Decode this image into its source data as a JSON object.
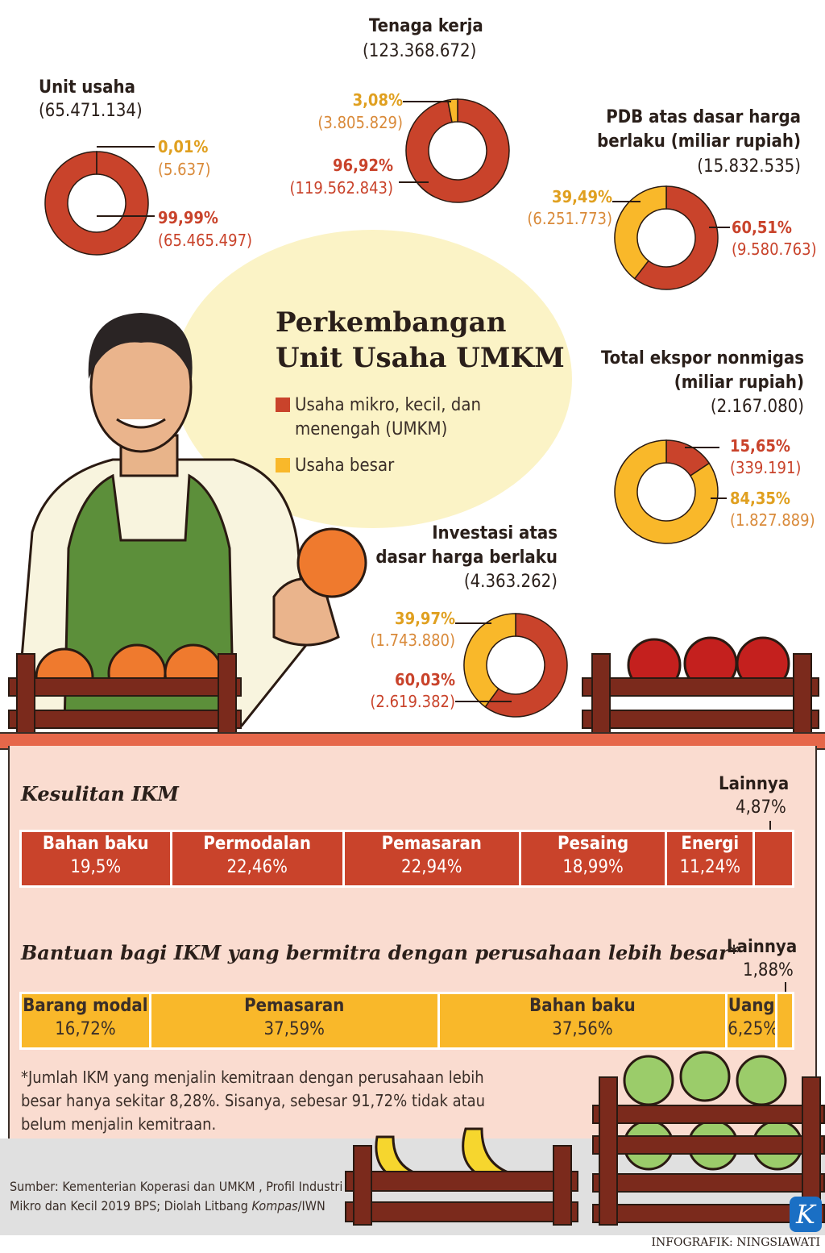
{
  "title": [
    "Perkembangan",
    "Unit Usaha UMKM"
  ],
  "legend": [
    {
      "label": "Usaha mikro, kecil, dan menengah (UMKM)",
      "color": "#c9432b"
    },
    {
      "label": "Usaha besar",
      "color": "#f9b82a"
    }
  ],
  "colors": {
    "umkm": "#c9432b",
    "besar": "#f9b82a"
  },
  "chart_data": [
    {
      "type": "pie",
      "donut": true,
      "title": "Unit usaha",
      "total": "(65.471.134)",
      "series": [
        {
          "name": "UMKM",
          "pct": "99,99%",
          "value": "(65.465.497)",
          "v": 99.99
        },
        {
          "name": "Usaha besar",
          "pct": "0,01%",
          "value": "(5.637)",
          "v": 0.01
        }
      ]
    },
    {
      "type": "pie",
      "donut": true,
      "title": "Tenaga kerja",
      "total": "(123.368.672)",
      "series": [
        {
          "name": "UMKM",
          "pct": "96,92%",
          "value": "(119.562.843)",
          "v": 96.92
        },
        {
          "name": "Usaha besar",
          "pct": "3,08%",
          "value": "(3.805.829)",
          "v": 3.08
        }
      ]
    },
    {
      "type": "pie",
      "donut": true,
      "title": "PDB atas dasar harga berlaku (miliar rupiah)",
      "total": "(15.832.535)",
      "series": [
        {
          "name": "UMKM",
          "pct": "60,51%",
          "value": "(9.580.763)",
          "v": 60.51
        },
        {
          "name": "Usaha besar",
          "pct": "39,49%",
          "value": "(6.251.773)",
          "v": 39.49
        }
      ]
    },
    {
      "type": "pie",
      "donut": true,
      "title": "Total ekspor nonmigas (miliar rupiah)",
      "total": "(2.167.080)",
      "series": [
        {
          "name": "UMKM",
          "pct": "15,65%",
          "value": "(339.191)",
          "v": 15.65
        },
        {
          "name": "Usaha besar",
          "pct": "84,35%",
          "value": "(1.827.889)",
          "v": 84.35
        }
      ]
    },
    {
      "type": "pie",
      "donut": true,
      "title": "Investasi atas dasar harga berlaku",
      "total": "(4.363.262)",
      "series": [
        {
          "name": "UMKM",
          "pct": "60,03%",
          "value": "(2.619.382)",
          "v": 60.03
        },
        {
          "name": "Usaha besar",
          "pct": "39,97%",
          "value": "(1.743.880)",
          "v": 39.97
        }
      ]
    },
    {
      "type": "bar",
      "stacked": true,
      "title": "Kesulitan IKM",
      "categories": [
        "Bahan baku",
        "Permodalan",
        "Pemasaran",
        "Pesaing",
        "Energi",
        "Lainnya"
      ],
      "labels": [
        "19,5%",
        "22,46%",
        "22,94%",
        "18,99%",
        "11,24%",
        "4,87%"
      ],
      "values": [
        19.5,
        22.46,
        22.94,
        18.99,
        11.24,
        4.87
      ]
    },
    {
      "type": "bar",
      "stacked": true,
      "title": "Bantuan bagi IKM yang bermitra dengan perusahaan lebih besar*",
      "categories": [
        "Barang modal",
        "Pemasaran",
        "Bahan baku",
        "Uang",
        "Lainnya"
      ],
      "labels": [
        "16,72%",
        "37,59%",
        "37,56%",
        "6,25%",
        "1,88%"
      ],
      "values": [
        16.72,
        37.59,
        37.56,
        6.25,
        1.88
      ]
    }
  ],
  "titles": {
    "unit": "Unit usaha",
    "tenaga": "Tenaga kerja",
    "pdb": [
      "PDB atas dasar harga",
      "berlaku (miliar rupiah)"
    ],
    "ekspor": [
      "Total ekspor nonmigas",
      "(miliar rupiah)"
    ],
    "investasi": [
      "Investasi atas",
      "dasar harga berlaku"
    ]
  },
  "footnote": "*Jumlah IKM yang menjalin kemitraan dengan perusahaan lebih besar hanya sekitar 8,28%. Sisanya, sebesar 91,72% tidak atau belum menjalin kemitraan.",
  "source": [
    "Sumber: Kementerian Koperasi dan UMKM , Profil Industri",
    "Mikro dan Kecil 2019 BPS; Diolah Litbang ",
    "Kompas",
    "/IWN"
  ],
  "credit": "INFOGRAFIK: NINGSIAWATI",
  "logo": "K"
}
